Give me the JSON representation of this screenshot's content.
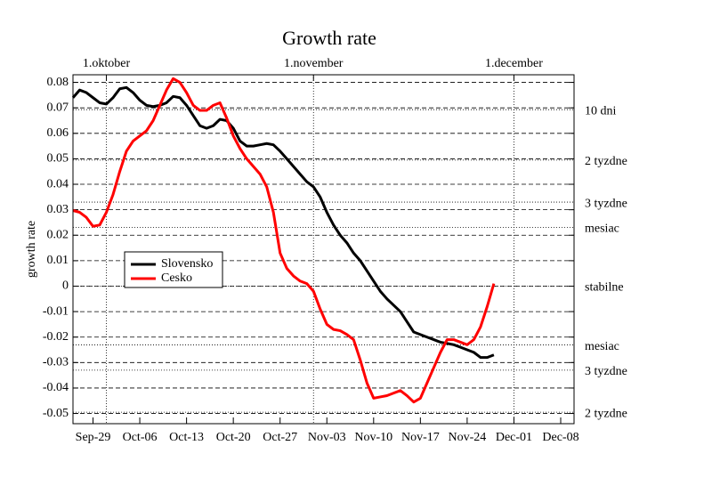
{
  "chart_data": {
    "type": "line",
    "title": "Growth rate",
    "y_label": "growth rate",
    "x": [
      -3,
      -2,
      -1,
      0,
      1,
      2,
      3,
      4,
      5,
      6,
      7,
      8,
      9,
      10,
      11,
      12,
      13,
      14,
      15,
      16,
      17,
      18,
      19,
      20,
      21,
      22,
      23,
      24,
      25,
      26,
      27,
      28,
      29,
      30,
      31,
      32,
      33,
      34,
      35,
      36,
      37,
      38,
      39,
      40,
      41,
      42,
      43,
      44,
      45,
      46,
      47,
      48,
      49,
      50,
      51,
      52,
      53,
      54,
      55,
      56,
      57,
      58,
      59,
      60
    ],
    "series": [
      {
        "name": "Slovensko",
        "color": "#000000",
        "values": [
          0.074,
          0.077,
          0.076,
          0.074,
          0.072,
          0.0715,
          0.074,
          0.0775,
          0.078,
          0.076,
          0.073,
          0.071,
          0.0705,
          0.071,
          0.072,
          0.0745,
          0.074,
          0.071,
          0.067,
          0.063,
          0.062,
          0.063,
          0.0655,
          0.065,
          0.062,
          0.057,
          0.055,
          0.055,
          0.0555,
          0.056,
          0.0555,
          0.053,
          0.05,
          0.047,
          0.044,
          0.041,
          0.039,
          0.035,
          0.029,
          0.024,
          0.02,
          0.017,
          0.013,
          0.01,
          0.006,
          0.002,
          -0.002,
          -0.005,
          -0.0075,
          -0.01,
          -0.014,
          -0.018,
          -0.019,
          -0.02,
          -0.021,
          -0.022,
          -0.0225,
          -0.023,
          -0.024,
          -0.025,
          -0.026,
          -0.028,
          -0.028,
          -0.027
        ]
      },
      {
        "name": "Cesko",
        "color": "#ff0000",
        "values": [
          0.0297,
          0.029,
          0.027,
          0.0235,
          0.024,
          0.029,
          0.036,
          0.045,
          0.053,
          0.057,
          0.059,
          0.061,
          0.065,
          0.071,
          0.077,
          0.0815,
          0.08,
          0.076,
          0.071,
          0.069,
          0.069,
          0.071,
          0.072,
          0.066,
          0.059,
          0.054,
          0.05,
          0.047,
          0.044,
          0.039,
          0.029,
          0.013,
          0.007,
          0.004,
          0.002,
          0.001,
          -0.002,
          -0.009,
          -0.015,
          -0.017,
          -0.0175,
          -0.019,
          -0.021,
          -0.029,
          -0.038,
          -0.044,
          -0.0435,
          -0.043,
          -0.042,
          -0.041,
          -0.043,
          -0.0455,
          -0.044,
          -0.038,
          -0.032,
          -0.026,
          -0.021,
          -0.021,
          -0.022,
          -0.023,
          -0.021,
          -0.016,
          -0.008,
          0.001
        ]
      }
    ],
    "xlim": [
      -3,
      72
    ],
    "xticks": [
      {
        "value": 0,
        "label": "Sep-29"
      },
      {
        "value": 7,
        "label": "Oct-06"
      },
      {
        "value": 14,
        "label": "Oct-13"
      },
      {
        "value": 21,
        "label": "Oct-20"
      },
      {
        "value": 28,
        "label": "Oct-27"
      },
      {
        "value": 35,
        "label": "Nov-03"
      },
      {
        "value": 42,
        "label": "Nov-10"
      },
      {
        "value": 49,
        "label": "Nov-17"
      },
      {
        "value": 56,
        "label": "Nov-24"
      },
      {
        "value": 63,
        "label": "Dec-01"
      },
      {
        "value": 70,
        "label": "Dec-08"
      }
    ],
    "x2ticks": [
      {
        "value": 2,
        "label": "1.oktober"
      },
      {
        "value": 33,
        "label": "1.november"
      },
      {
        "value": 63,
        "label": "1.december"
      }
    ],
    "ylim": [
      -0.054,
      0.083
    ],
    "yticks": [
      0.08,
      0.07,
      0.06,
      0.05,
      0.04,
      0.03,
      0.02,
      0.01,
      0,
      -0.01,
      -0.02,
      -0.03,
      -0.04,
      -0.05
    ],
    "reference_lines": [
      {
        "value": 0.0693,
        "label": "10 dni"
      },
      {
        "value": 0.0495,
        "label": "2 tyzdne"
      },
      {
        "value": 0.033,
        "label": "3 tyzdne"
      },
      {
        "value": 0.0231,
        "label": "mesiac"
      },
      {
        "value": 0,
        "label": "stabilne"
      },
      {
        "value": -0.0231,
        "label": "mesiac"
      },
      {
        "value": -0.033,
        "label": "3 tyzdne"
      },
      {
        "value": -0.0495,
        "label": "2 tyzdne"
      }
    ],
    "grid": true,
    "legend_position": "center-left"
  }
}
